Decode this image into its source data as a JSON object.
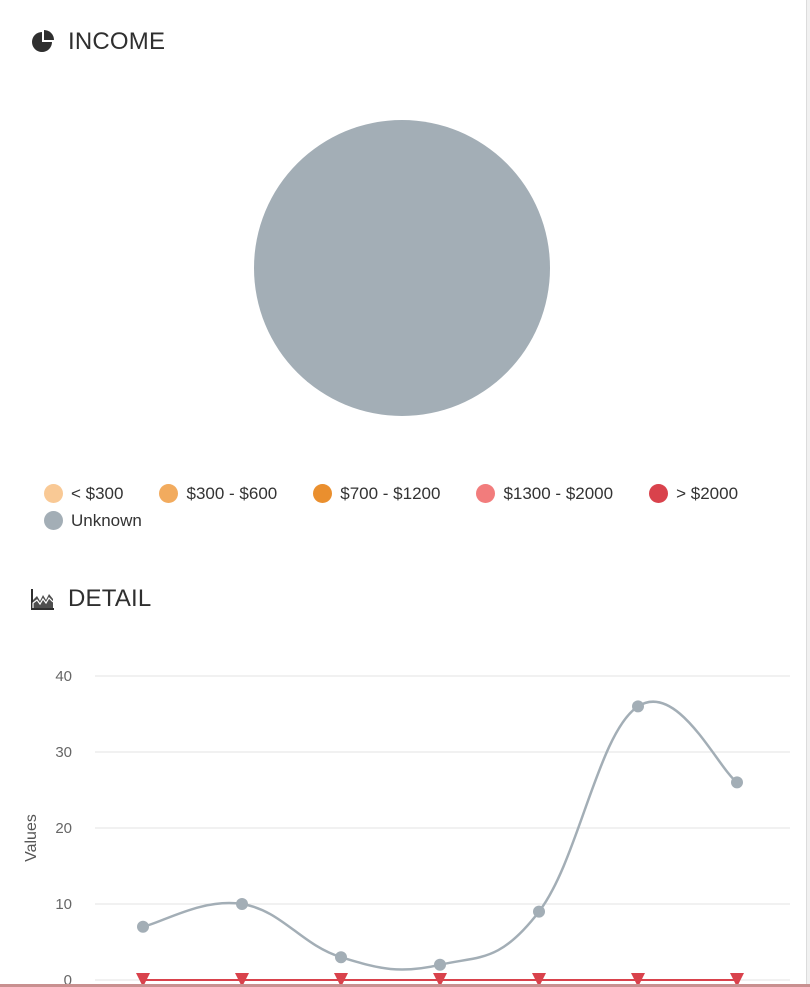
{
  "income": {
    "title": "INCOME",
    "icon": "pie-chart-icon"
  },
  "detail": {
    "title": "DETAIL",
    "icon": "area-chart-icon"
  },
  "colors": {
    "lt300": "#f9c995",
    "300to600": "#f2ab5e",
    "700to1200": "#ea8f2e",
    "1300to2000": "#f27c7c",
    "gt2000": "#d9424c",
    "unknown": "#a3aeb6"
  },
  "legend": [
    {
      "label": "< $300",
      "color": "#f9c995"
    },
    {
      "label": "$300 - $600",
      "color": "#f2ab5e"
    },
    {
      "label": "$700 - $1200",
      "color": "#ea8f2e"
    },
    {
      "label": "$1300 - $2000",
      "color": "#f27c7c"
    },
    {
      "label": "> $2000",
      "color": "#d9424c"
    },
    {
      "label": "Unknown",
      "color": "#a3aeb6"
    }
  ],
  "chart_data": [
    {
      "type": "pie",
      "title": "INCOME",
      "categories": [
        "< $300",
        "$300 - $600",
        "$700 - $1200",
        "$1300 - $2000",
        "> $2000",
        "Unknown"
      ],
      "values": [
        0,
        0,
        0,
        0,
        0,
        100
      ],
      "colors": [
        "#f9c995",
        "#f2ab5e",
        "#ea8f2e",
        "#f27c7c",
        "#d9424c",
        "#a3aeb6"
      ],
      "legend": "bottom"
    },
    {
      "type": "line",
      "title": "DETAIL",
      "ylabel": "Values",
      "ylim": [
        0,
        40
      ],
      "yticks": [
        0,
        10,
        20,
        30,
        40
      ],
      "grid": true,
      "x": [
        1,
        2,
        3,
        4,
        5,
        6,
        7
      ],
      "series": [
        {
          "values": [
            7,
            10,
            3,
            2,
            9,
            36,
            26
          ],
          "color": "#a3aeb6",
          "marker": "circle"
        },
        {
          "values": [
            0,
            0,
            0,
            0,
            0,
            0,
            0
          ],
          "color": "#d9424c",
          "marker": "triangle-down"
        }
      ]
    }
  ]
}
